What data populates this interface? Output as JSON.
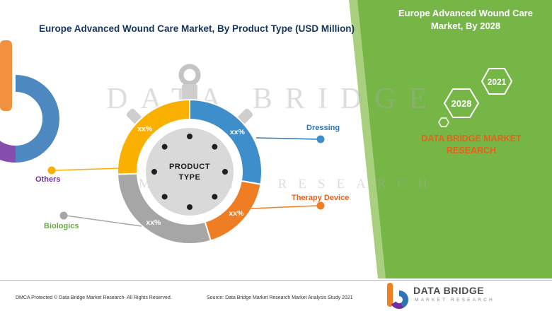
{
  "title": "Europe Advanced Wound Care Market, By Product Type (USD Million)",
  "chart_data": {
    "type": "pie",
    "variant": "donut-stopwatch",
    "title": "Europe Advanced Wound Care Market, By Product Type (USD Million)",
    "center_lines": [
      "PRODUCT",
      "TYPE"
    ],
    "categories": [
      "Dressing",
      "Therapy Device",
      "Biologics",
      "Others"
    ],
    "values": [
      "xx%",
      "xx%",
      "xx%",
      "xx%"
    ],
    "segments": [
      {
        "name": "Dressing",
        "value": "xx%",
        "color": "#3e8ecc",
        "start": 0,
        "end": 100
      },
      {
        "name": "Therapy Device",
        "value": "xx%",
        "color": "#ee7d23",
        "start": 100,
        "end": 163
      },
      {
        "name": "Biologics",
        "value": "xx%",
        "color": "#a6a6a6",
        "start": 163,
        "end": 268
      },
      {
        "name": "Others",
        "value": "xx%",
        "color": "#f9b000",
        "start": 268,
        "end": 360
      }
    ],
    "legend_position": "callout-labels"
  },
  "callouts": {
    "dressing": {
      "label": "Dressing",
      "color": "#2e75b6"
    },
    "therapy_device": {
      "label": "Therapy Device",
      "color": "#e8611a"
    },
    "biologics": {
      "label": "Biologics",
      "color": "#6aaa46"
    },
    "others": {
      "label": "Others",
      "color": "#7030a0"
    }
  },
  "right_panel": {
    "heading": "Europe Advanced Wound Care Market, By 2028",
    "hexagons": [
      "2028",
      "2021"
    ],
    "brand": "DATA BRIDGE MARKET RESEARCH",
    "background_color": "#76b647",
    "accent_color": "#e8611a"
  },
  "watermark": {
    "line1": "DATA BRIDGE",
    "line2": "MARKET RESEARCH"
  },
  "footer": {
    "dmca": "DMCA Protected © Data Bridge Market Research- All Rights Reserved.",
    "source": "Source: Data Bridge Market Research Market Analysis Study 2021",
    "logo_name": "DATA BRIDGE",
    "logo_tagline": "MARKET RESEARCH"
  }
}
